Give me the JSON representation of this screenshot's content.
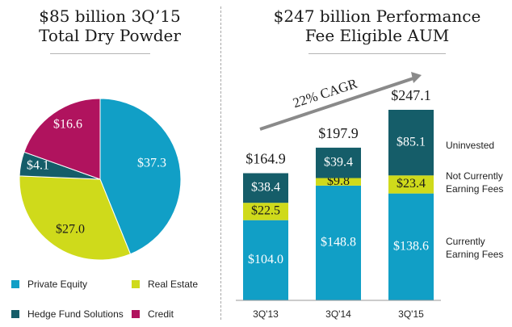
{
  "left": {
    "title_line1": "$85 billion 3Q’15",
    "title_line2": "Total Dry Powder"
  },
  "right": {
    "title_line1": "$247 billion Performance",
    "title_line2": "Fee Eligible AUM",
    "cagr_label": "22% CAGR"
  },
  "colors": {
    "private_equity": "#119FC6",
    "real_estate": "#CFDA1B",
    "hedge_fund": "#155D69",
    "credit": "#B0135E",
    "uninvested": "#155D69",
    "not_earning": "#CFDA1B",
    "earning": "#119FC6",
    "arrow": "#8A8A8A"
  },
  "chart_data": [
    {
      "type": "pie",
      "title": "$85 billion 3Q’15 Total Dry Powder",
      "slices": [
        {
          "name": "Private Equity",
          "value": 37.3,
          "label": "$37.3"
        },
        {
          "name": "Real Estate",
          "value": 27.0,
          "label": "$27.0"
        },
        {
          "name": "Hedge Fund Solutions",
          "value": 4.1,
          "label": "$4.1"
        },
        {
          "name": "Credit",
          "value": 16.6,
          "label": "$16.6"
        }
      ],
      "legend": [
        "Private Equity",
        "Real Estate",
        "Hedge Fund Solutions",
        "Credit"
      ],
      "legend_position": "bottom"
    },
    {
      "type": "bar",
      "stacked": true,
      "title": "$247 billion Performance Fee Eligible AUM",
      "categories": [
        "3Q'13",
        "3Q'14",
        "3Q'15"
      ],
      "totals": [
        "$164.9",
        "$197.9",
        "$247.1"
      ],
      "series": [
        {
          "name": "Currently Earning Fees",
          "values": [
            104.0,
            148.8,
            138.6
          ],
          "labels": [
            "$104.0",
            "$148.8",
            "$138.6"
          ]
        },
        {
          "name": "Not Currently Earning Fees",
          "values": [
            22.5,
            9.8,
            23.4
          ],
          "labels": [
            "$22.5",
            "$9.8",
            "$23.4"
          ]
        },
        {
          "name": "Uninvested",
          "values": [
            38.4,
            39.4,
            85.1
          ],
          "labels": [
            "$38.4",
            "$39.4",
            "$85.1"
          ]
        }
      ],
      "legend_position": "right",
      "annotation": "22% CAGR"
    }
  ],
  "series_labels": {
    "uninvested": "Uninvested",
    "not_earning_line1": "Not Currently",
    "not_earning_line2": "Earning Fees",
    "earning_line1": "Currently",
    "earning_line2": "Earning Fees"
  }
}
